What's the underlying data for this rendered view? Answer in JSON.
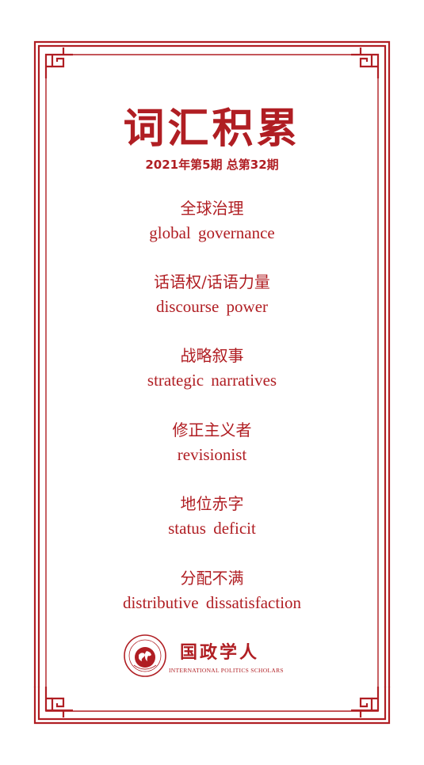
{
  "title": "词汇积累",
  "issue": "2021年第5期 总第32期",
  "terms": [
    {
      "zh": "全球治理",
      "en": "global governance"
    },
    {
      "zh": "话语权/话语力量",
      "en": "discourse power"
    },
    {
      "zh": "战略叙事",
      "en": "strategic narratives"
    },
    {
      "zh": "修正主义者",
      "en": "revisionist"
    },
    {
      "zh": "地位赤字",
      "en": "status deficit"
    },
    {
      "zh": "分配不满",
      "en": "distributive dissatisfaction"
    }
  ],
  "logo": {
    "name": "国政学人",
    "subtitle": "INTERNATIONAL POLITICS SCHOLARS",
    "emblem_icon": "globe-seal-icon",
    "seal_text": "国政学人"
  },
  "colors": {
    "accent": "#b01e23",
    "background": "#ffffff"
  }
}
